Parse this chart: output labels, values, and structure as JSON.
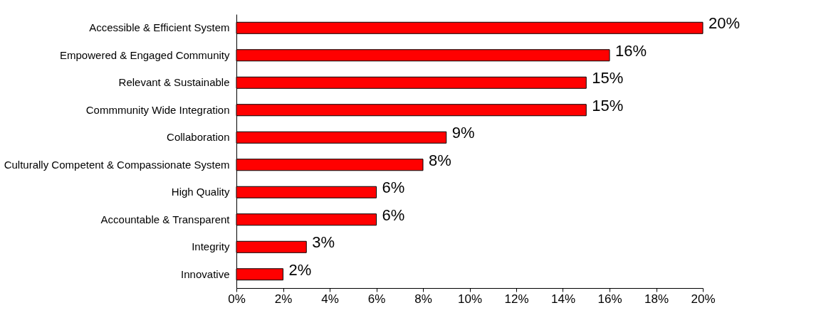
{
  "chart_data": {
    "type": "bar",
    "orientation": "horizontal",
    "categories": [
      "Accessible & Efficient System",
      "Empowered & Engaged Community",
      "Relevant & Sustainable",
      "Commmunity Wide Integration",
      "Collaboration",
      "Culturally Competent & Compassionate System",
      "High Quality",
      "Accountable & Transparent",
      "Integrity",
      "Innovative"
    ],
    "values": [
      20,
      16,
      15,
      15,
      9,
      8,
      6,
      6,
      3,
      2
    ],
    "value_labels": [
      "20%",
      "16%",
      "15%",
      "15%",
      "9%",
      "8%",
      "6%",
      "6%",
      "3%",
      "2%"
    ],
    "color": "#ff0000",
    "xlim": [
      0,
      20
    ],
    "xticks": [
      {
        "value": 0,
        "label": "0%"
      },
      {
        "value": 2,
        "label": "2%"
      },
      {
        "value": 4,
        "label": "4%"
      },
      {
        "value": 6,
        "label": "6%"
      },
      {
        "value": 8,
        "label": "8%"
      },
      {
        "value": 10,
        "label": "10%"
      },
      {
        "value": 12,
        "label": "12%"
      },
      {
        "value": 14,
        "label": "14%"
      },
      {
        "value": 16,
        "label": "16%"
      },
      {
        "value": 18,
        "label": "18%"
      },
      {
        "value": 20,
        "label": "20%"
      }
    ],
    "grid": false
  }
}
